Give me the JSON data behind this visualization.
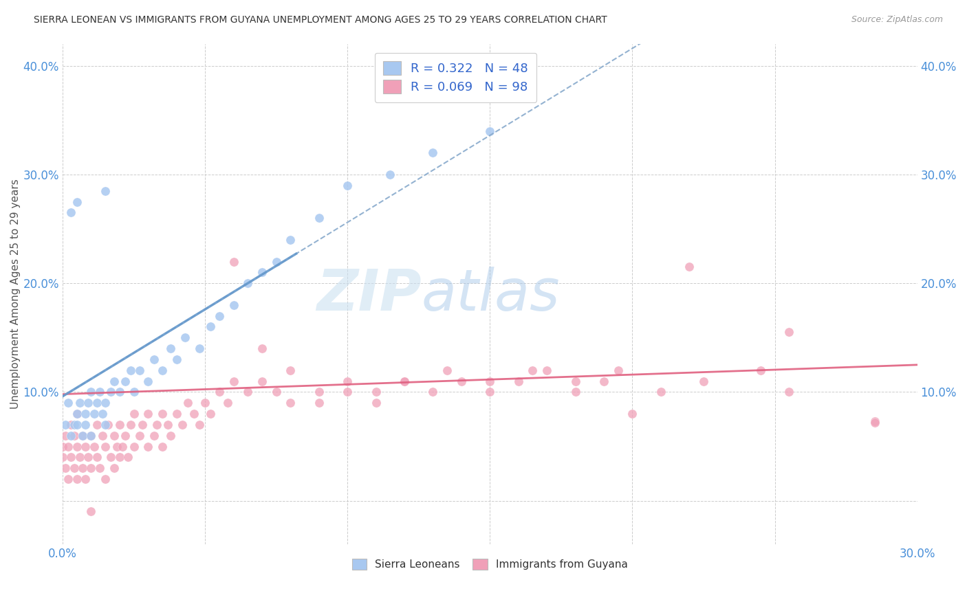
{
  "title": "SIERRA LEONEAN VS IMMIGRANTS FROM GUYANA UNEMPLOYMENT AMONG AGES 25 TO 29 YEARS CORRELATION CHART",
  "source": "Source: ZipAtlas.com",
  "ylabel": "Unemployment Among Ages 25 to 29 years",
  "xlim": [
    0.0,
    0.3
  ],
  "ylim": [
    -0.04,
    0.42
  ],
  "color_blue": "#a8c8f0",
  "color_pink": "#f0a0b8",
  "line_blue": "#6699cc",
  "line_pink": "#e06080",
  "R_blue": 0.322,
  "N_blue": 48,
  "R_pink": 0.069,
  "N_pink": 98,
  "legend_label_blue": "Sierra Leoneans",
  "legend_label_pink": "Immigrants from Guyana",
  "watermark_zip": "ZIP",
  "watermark_atlas": "atlas"
}
